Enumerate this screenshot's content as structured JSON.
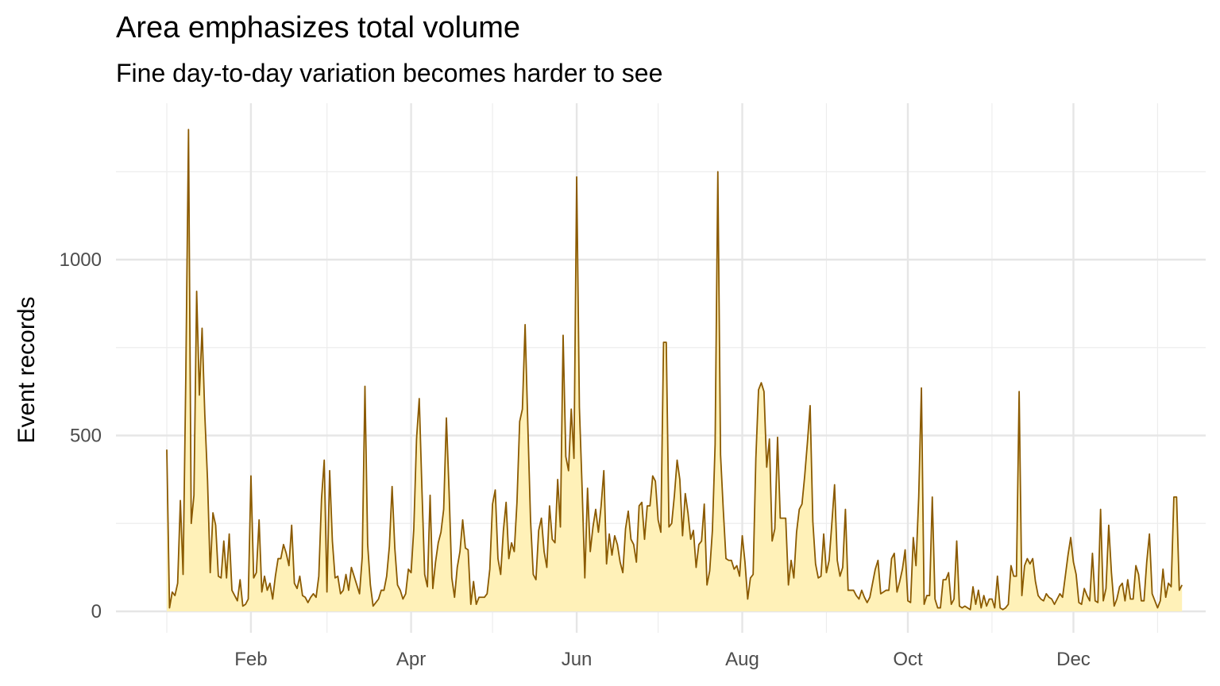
{
  "chart_data": {
    "type": "area",
    "title": "Area emphasizes total volume",
    "subtitle": "Fine day-to-day variation becomes harder to see",
    "xlabel": "",
    "ylabel": "Event records",
    "x_ticks": [
      "Feb",
      "Apr",
      "Jun",
      "Aug",
      "Oct",
      "Dec"
    ],
    "y_ticks": [
      0,
      500,
      1000
    ],
    "xlim": [
      "2023-01-01",
      "2023-12-31"
    ],
    "ylim": [
      0,
      1350
    ],
    "grid": true,
    "line_color": "#8B5A00",
    "fill_color": "#FFF1B8",
    "series": [
      {
        "start_date": "2023-01-01",
        "frequency": "daily",
        "values": [
          460,
          10,
          55,
          45,
          80,
          315,
          105,
          665,
          1370,
          250,
          330,
          910,
          615,
          805,
          560,
          375,
          110,
          280,
          245,
          100,
          95,
          200,
          95,
          220,
          60,
          45,
          30,
          90,
          15,
          20,
          35,
          385,
          95,
          110,
          260,
          55,
          100,
          60,
          80,
          35,
          100,
          150,
          150,
          190,
          165,
          130,
          245,
          80,
          65,
          100,
          45,
          40,
          25,
          40,
          50,
          40,
          100,
          320,
          430,
          55,
          400,
          200,
          95,
          100,
          50,
          60,
          105,
          60,
          125,
          100,
          75,
          50,
          155,
          640,
          190,
          75,
          15,
          25,
          35,
          60,
          60,
          100,
          185,
          355,
          180,
          75,
          60,
          35,
          50,
          120,
          110,
          235,
          490,
          605,
          345,
          105,
          70,
          330,
          65,
          140,
          195,
          225,
          290,
          550,
          340,
          95,
          40,
          125,
          170,
          260,
          180,
          175,
          20,
          85,
          20,
          40,
          40,
          40,
          50,
          120,
          305,
          345,
          150,
          105,
          230,
          310,
          150,
          195,
          170,
          310,
          540,
          575,
          815,
          530,
          260,
          105,
          90,
          230,
          265,
          170,
          125,
          300,
          205,
          195,
          375,
          240,
          785,
          440,
          400,
          575,
          435,
          1235,
          580,
          350,
          95,
          350,
          170,
          240,
          290,
          225,
          300,
          400,
          135,
          220,
          160,
          215,
          190,
          140,
          110,
          235,
          285,
          205,
          190,
          140,
          300,
          310,
          205,
          300,
          300,
          385,
          370,
          260,
          225,
          765,
          765,
          240,
          250,
          330,
          430,
          375,
          215,
          335,
          280,
          205,
          230,
          125,
          190,
          200,
          305,
          75,
          115,
          230,
          475,
          1250,
          445,
          290,
          150,
          145,
          145,
          120,
          130,
          100,
          215,
          140,
          35,
          95,
          105,
          435,
          630,
          650,
          625,
          410,
          490,
          200,
          235,
          495,
          265,
          265,
          265,
          75,
          145,
          95,
          225,
          290,
          305,
          385,
          480,
          585,
          255,
          135,
          95,
          100,
          220,
          110,
          145,
          250,
          360,
          145,
          100,
          125,
          290,
          60,
          60,
          60,
          45,
          35,
          60,
          40,
          25,
          40,
          80,
          120,
          145,
          50,
          55,
          60,
          60,
          150,
          165,
          55,
          85,
          120,
          175,
          30,
          25,
          210,
          130,
          325,
          635,
          20,
          45,
          45,
          325,
          35,
          10,
          10,
          90,
          90,
          110,
          20,
          35,
          200,
          15,
          10,
          15,
          10,
          5,
          70,
          20,
          60,
          10,
          45,
          15,
          35,
          35,
          10,
          100,
          10,
          5,
          10,
          20,
          130,
          100,
          100,
          625,
          45,
          130,
          150,
          135,
          150,
          85,
          45,
          35,
          30,
          50,
          40,
          35,
          20,
          35,
          50,
          40,
          100,
          160,
          210,
          140,
          105,
          25,
          20,
          65,
          45,
          30,
          165,
          30,
          25,
          290,
          30,
          65,
          245,
          110,
          15,
          35,
          70,
          80,
          30,
          90,
          35,
          35,
          130,
          105,
          30,
          30,
          140,
          220,
          50,
          30,
          10,
          30,
          120,
          40,
          80,
          70,
          325,
          325,
          60,
          75
        ]
      }
    ]
  }
}
